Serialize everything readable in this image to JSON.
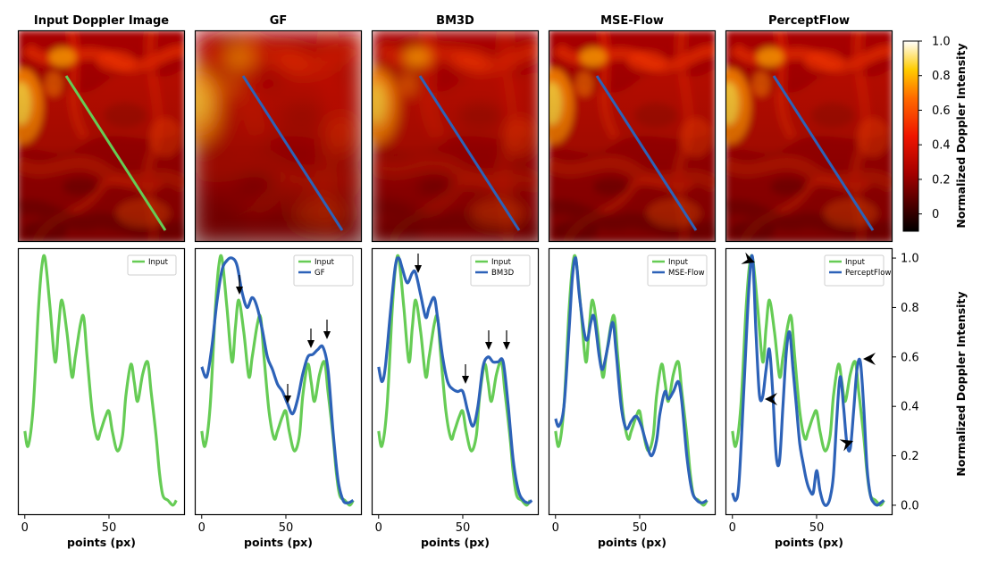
{
  "figure": {
    "panel_titles": [
      "Input Doppler Image",
      "GF",
      "BM3D",
      "MSE-Flow",
      "PerceptFlow"
    ],
    "colorbar": {
      "label": "Normalized Doppler Intensity",
      "ticks": [
        "1.0",
        "0.8",
        "0.6",
        "0.4",
        "0.2",
        "0"
      ],
      "tick_values": [
        1.0,
        0.8,
        0.6,
        0.4,
        0.2,
        0.0
      ],
      "range": [
        -0.1,
        1.0
      ],
      "colormap": "hot"
    },
    "profile_line_colors": [
      "#66cc55",
      "#2d62b8",
      "#2d62b8",
      "#2d62b8",
      "#2d62b8"
    ],
    "input_color": "#66cc55",
    "method_color": "#2d62b8",
    "y_axis_label": "Normalized Doppler Intensity",
    "x_axis_label": "points (px)",
    "x_ticks": [
      "0",
      "50"
    ],
    "y_ticks": [
      "1.0",
      "0.8",
      "0.6",
      "0.4",
      "0.2",
      "0.0"
    ]
  },
  "chart_data": [
    {
      "type": "line",
      "title": "",
      "xlabel": "points (px)",
      "ylabel": "",
      "xlim": [
        -2,
        93
      ],
      "ylim": [
        -0.04,
        1.04
      ],
      "series": [
        {
          "name": "Input",
          "x": [
            0,
            2,
            5,
            8,
            10,
            12,
            15,
            18,
            20,
            22,
            25,
            28,
            30,
            33,
            35,
            37,
            40,
            43,
            45,
            48,
            50,
            52,
            55,
            58,
            60,
            63,
            65,
            67,
            70,
            73,
            75,
            78,
            80,
            82,
            85,
            88,
            90
          ],
          "y": [
            0.3,
            0.24,
            0.4,
            0.78,
            0.96,
            1.0,
            0.8,
            0.58,
            0.72,
            0.83,
            0.7,
            0.52,
            0.6,
            0.73,
            0.76,
            0.6,
            0.38,
            0.27,
            0.3,
            0.36,
            0.38,
            0.3,
            0.22,
            0.28,
            0.44,
            0.57,
            0.5,
            0.42,
            0.53,
            0.58,
            0.46,
            0.28,
            0.13,
            0.04,
            0.02,
            0.0,
            0.02
          ]
        }
      ]
    },
    {
      "type": "line",
      "title": "",
      "xlabel": "points (px)",
      "ylabel": "",
      "xlim": [
        -2,
        93
      ],
      "ylim": [
        -0.04,
        1.04
      ],
      "series": [
        {
          "name": "Input",
          "x": [
            0,
            2,
            5,
            8,
            10,
            12,
            15,
            18,
            20,
            22,
            25,
            28,
            30,
            33,
            35,
            37,
            40,
            43,
            45,
            48,
            50,
            52,
            55,
            58,
            60,
            63,
            65,
            67,
            70,
            73,
            75,
            78,
            80,
            82,
            85,
            88,
            90
          ],
          "y": [
            0.3,
            0.24,
            0.4,
            0.78,
            0.96,
            1.0,
            0.8,
            0.58,
            0.72,
            0.83,
            0.7,
            0.52,
            0.6,
            0.73,
            0.76,
            0.6,
            0.38,
            0.27,
            0.3,
            0.36,
            0.38,
            0.3,
            0.22,
            0.28,
            0.44,
            0.57,
            0.5,
            0.42,
            0.53,
            0.58,
            0.46,
            0.28,
            0.13,
            0.04,
            0.02,
            0.0,
            0.02
          ]
        },
        {
          "name": "GF",
          "x": [
            0,
            3,
            6,
            9,
            12,
            15,
            18,
            21,
            24,
            27,
            30,
            33,
            36,
            39,
            42,
            45,
            48,
            51,
            54,
            57,
            60,
            63,
            66,
            69,
            72,
            75,
            78,
            81,
            84,
            87,
            90
          ],
          "y": [
            0.56,
            0.52,
            0.64,
            0.82,
            0.95,
            0.99,
            1.0,
            0.97,
            0.86,
            0.8,
            0.84,
            0.8,
            0.71,
            0.6,
            0.55,
            0.49,
            0.46,
            0.41,
            0.37,
            0.43,
            0.53,
            0.6,
            0.61,
            0.63,
            0.64,
            0.55,
            0.3,
            0.1,
            0.02,
            0.01,
            0.02
          ]
        }
      ]
    },
    {
      "type": "line",
      "title": "",
      "xlabel": "points (px)",
      "ylabel": "",
      "xlim": [
        -2,
        93
      ],
      "ylim": [
        -0.04,
        1.04
      ],
      "series": [
        {
          "name": "Input",
          "x": [
            0,
            2,
            5,
            8,
            10,
            12,
            15,
            18,
            20,
            22,
            25,
            28,
            30,
            33,
            35,
            37,
            40,
            43,
            45,
            48,
            50,
            52,
            55,
            58,
            60,
            63,
            65,
            67,
            70,
            73,
            75,
            78,
            80,
            82,
            85,
            88,
            90
          ],
          "y": [
            0.3,
            0.24,
            0.4,
            0.78,
            0.96,
            1.0,
            0.8,
            0.58,
            0.72,
            0.83,
            0.7,
            0.52,
            0.6,
            0.73,
            0.76,
            0.6,
            0.38,
            0.27,
            0.3,
            0.36,
            0.38,
            0.3,
            0.22,
            0.28,
            0.44,
            0.57,
            0.5,
            0.42,
            0.53,
            0.58,
            0.46,
            0.28,
            0.13,
            0.04,
            0.02,
            0.0,
            0.02
          ]
        },
        {
          "name": "BM3D",
          "x": [
            0,
            2,
            4,
            7,
            10,
            12,
            14,
            17,
            20,
            22,
            25,
            28,
            30,
            33,
            35,
            38,
            41,
            44,
            47,
            50,
            53,
            56,
            59,
            62,
            65,
            68,
            71,
            74,
            77,
            80,
            83,
            86,
            89,
            91
          ],
          "y": [
            0.56,
            0.5,
            0.56,
            0.78,
            0.97,
            1.0,
            0.96,
            0.9,
            0.94,
            0.94,
            0.85,
            0.76,
            0.8,
            0.84,
            0.76,
            0.6,
            0.5,
            0.47,
            0.46,
            0.46,
            0.38,
            0.32,
            0.4,
            0.56,
            0.6,
            0.58,
            0.58,
            0.58,
            0.4,
            0.18,
            0.06,
            0.02,
            0.01,
            0.02
          ]
        }
      ]
    },
    {
      "type": "line",
      "title": "",
      "xlabel": "points (px)",
      "ylabel": "",
      "xlim": [
        -2,
        93
      ],
      "ylim": [
        -0.04,
        1.04
      ],
      "series": [
        {
          "name": "Input",
          "x": [
            0,
            2,
            5,
            8,
            10,
            12,
            15,
            18,
            20,
            22,
            25,
            28,
            30,
            33,
            35,
            37,
            40,
            43,
            45,
            48,
            50,
            52,
            55,
            58,
            60,
            63,
            65,
            67,
            70,
            73,
            75,
            78,
            80,
            82,
            85,
            88,
            90
          ],
          "y": [
            0.3,
            0.24,
            0.4,
            0.78,
            0.96,
            1.0,
            0.8,
            0.58,
            0.72,
            0.83,
            0.7,
            0.52,
            0.6,
            0.73,
            0.76,
            0.6,
            0.38,
            0.27,
            0.3,
            0.36,
            0.38,
            0.3,
            0.22,
            0.28,
            0.44,
            0.57,
            0.5,
            0.42,
            0.53,
            0.58,
            0.46,
            0.28,
            0.13,
            0.04,
            0.02,
            0.0,
            0.02
          ]
        },
        {
          "name": "MSE-Flow",
          "x": [
            0,
            2,
            5,
            8,
            10,
            12,
            14,
            17,
            19,
            21,
            23,
            26,
            28,
            31,
            34,
            36,
            39,
            42,
            45,
            48,
            51,
            54,
            57,
            60,
            62,
            65,
            67,
            70,
            73,
            75,
            78,
            81,
            84,
            87,
            90
          ],
          "y": [
            0.35,
            0.32,
            0.4,
            0.7,
            0.92,
            1.0,
            0.86,
            0.7,
            0.67,
            0.74,
            0.76,
            0.6,
            0.55,
            0.64,
            0.74,
            0.62,
            0.4,
            0.31,
            0.34,
            0.36,
            0.32,
            0.25,
            0.2,
            0.26,
            0.37,
            0.46,
            0.43,
            0.46,
            0.5,
            0.42,
            0.2,
            0.06,
            0.02,
            0.01,
            0.02
          ]
        }
      ]
    },
    {
      "type": "line",
      "title": "",
      "xlabel": "points (px)",
      "ylabel": "",
      "xlim": [
        -2,
        93
      ],
      "ylim": [
        -0.04,
        1.04
      ],
      "series": [
        {
          "name": "Input",
          "x": [
            0,
            2,
            5,
            8,
            10,
            12,
            15,
            18,
            20,
            22,
            25,
            28,
            30,
            33,
            35,
            37,
            40,
            43,
            45,
            48,
            50,
            52,
            55,
            58,
            60,
            63,
            65,
            67,
            70,
            73,
            75,
            78,
            80,
            82,
            85,
            88,
            90
          ],
          "y": [
            0.3,
            0.24,
            0.4,
            0.78,
            0.96,
            1.0,
            0.8,
            0.58,
            0.72,
            0.83,
            0.7,
            0.52,
            0.6,
            0.73,
            0.76,
            0.6,
            0.38,
            0.27,
            0.3,
            0.36,
            0.38,
            0.3,
            0.22,
            0.28,
            0.44,
            0.57,
            0.5,
            0.42,
            0.53,
            0.58,
            0.46,
            0.28,
            0.13,
            0.04,
            0.02,
            0.0,
            0.02
          ]
        },
        {
          "name": "PerceptFlow",
          "x": [
            0,
            2,
            4,
            7,
            10,
            12,
            14,
            16,
            18,
            20,
            22,
            24,
            26,
            28,
            30,
            32,
            34,
            36,
            38,
            40,
            42,
            44,
            46,
            48,
            50,
            52,
            54,
            56,
            58,
            60,
            62,
            64,
            66,
            68,
            70,
            72,
            74,
            76,
            78,
            80,
            82,
            84,
            86,
            88,
            90
          ],
          "y": [
            0.05,
            0.02,
            0.1,
            0.5,
            0.9,
            1.0,
            0.7,
            0.45,
            0.44,
            0.55,
            0.63,
            0.45,
            0.2,
            0.18,
            0.4,
            0.62,
            0.7,
            0.55,
            0.4,
            0.25,
            0.17,
            0.1,
            0.06,
            0.05,
            0.14,
            0.06,
            0.01,
            0.0,
            0.03,
            0.12,
            0.35,
            0.52,
            0.4,
            0.25,
            0.23,
            0.38,
            0.55,
            0.58,
            0.4,
            0.15,
            0.04,
            0.01,
            0.0,
            0.01,
            0.02
          ]
        }
      ]
    }
  ]
}
